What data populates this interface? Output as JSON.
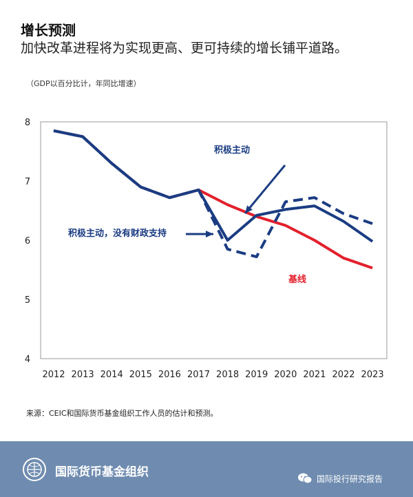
{
  "header": {
    "title": "增长预测",
    "subtitle": "加快改革进程将为实现更高、更可持续的增长铺平道路。",
    "unit_note": "（GDP以百分比计，年同比增速）"
  },
  "footer": {
    "source": "来源：CEIC和国际货币基金组织工作人员的估计和预测。",
    "brand": "国际货币基金组织",
    "wechat_account": "国际投行研究报告",
    "colors": {
      "background": "#6f8cb0",
      "text": "#ffffff"
    },
    "icons": [
      "imf-seal-logo",
      "wechat-icon"
    ]
  },
  "chart_data": {
    "type": "line",
    "title": "",
    "xlabel": "",
    "ylabel": "",
    "x": [
      "2012",
      "2013",
      "2014",
      "2015",
      "2016",
      "2017",
      "2018",
      "2019",
      "2020",
      "2021",
      "2022",
      "2023"
    ],
    "ylim": [
      4,
      8
    ],
    "yticks": [
      4,
      5,
      6,
      7,
      8
    ],
    "grid": false,
    "series": [
      {
        "name": "基线",
        "color": "#e3202c",
        "style": "solid",
        "values": [
          7.85,
          7.75,
          7.3,
          6.9,
          6.72,
          6.85,
          6.6,
          6.4,
          6.25,
          6.0,
          5.7,
          5.53
        ]
      },
      {
        "name": "积极主动",
        "color": "#1a3c82",
        "style": "solid",
        "values": [
          7.85,
          7.75,
          7.3,
          6.9,
          6.72,
          6.85,
          6.0,
          6.42,
          6.52,
          6.58,
          6.32,
          5.98
        ]
      },
      {
        "name": "积极主动，没有财政支持",
        "color": "#1a3c82",
        "style": "dashed",
        "values": [
          7.85,
          7.75,
          7.3,
          6.9,
          6.72,
          6.85,
          5.85,
          5.72,
          6.65,
          6.72,
          6.45,
          6.28
        ]
      }
    ],
    "annotations": [
      {
        "text": "积极主动",
        "series": "积极主动",
        "arrow": true
      },
      {
        "text": "积极主动，没有财政支持",
        "series": "积极主动，没有财政支持",
        "arrow": true
      },
      {
        "text": "基线",
        "series": "基线",
        "arrow": false
      }
    ]
  }
}
